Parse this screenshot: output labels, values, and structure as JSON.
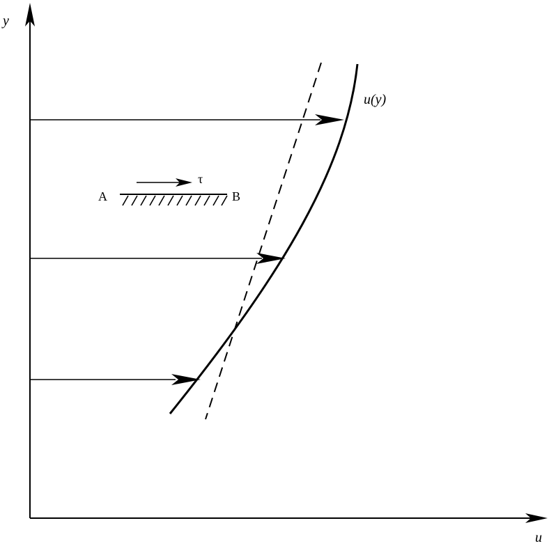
{
  "axes": {
    "y_label": "y",
    "x_label": "u"
  },
  "curve_label": "u(y)",
  "shear_element": {
    "left_label": "A",
    "right_label": "B",
    "shear_symbol": "τ"
  },
  "colors": {
    "stroke": "#000000",
    "background": "#ffffff"
  }
}
